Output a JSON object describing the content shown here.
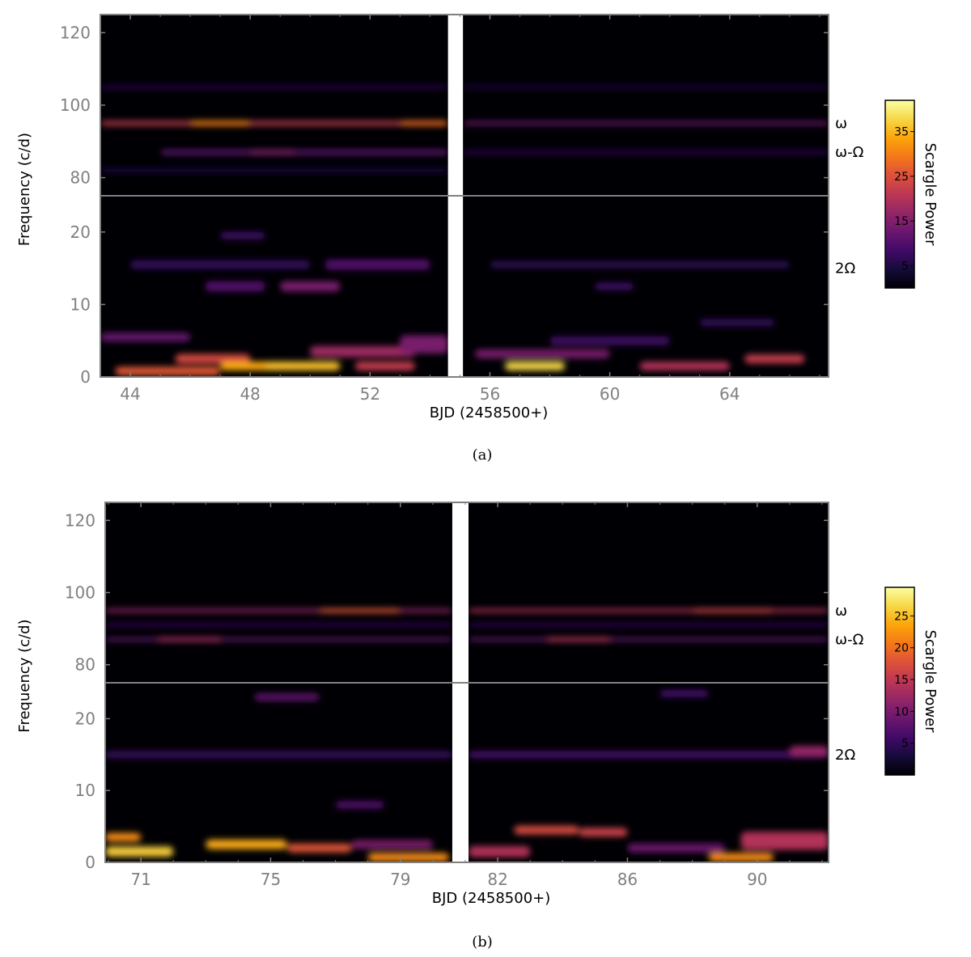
{
  "chart_data": [
    {
      "type": "heatmap",
      "caption": "(a)",
      "xlabel": "BJD (2458500+)",
      "ylabel": "Frequency (c/d)",
      "colorbar_label": "Scargle Power",
      "colorbar_ticks": [
        5,
        15,
        25,
        35
      ],
      "colorbar_range": [
        0,
        42
      ],
      "xlim": [
        43,
        67.3
      ],
      "gap": [
        54.6,
        55.1
      ],
      "x_ticks": [
        44,
        48,
        52,
        56,
        60,
        64
      ],
      "upper_ylim": [
        75,
        125
      ],
      "upper_y_ticks": [
        80,
        100,
        120
      ],
      "lower_ylim": [
        0,
        25
      ],
      "lower_y_ticks": [
        0,
        10,
        20
      ],
      "annotations": [
        {
          "text": "ω",
          "y": 95
        },
        {
          "text": "ω-Ω",
          "y": 87
        },
        {
          "text": "2Ω",
          "y": 15
        }
      ],
      "features": [
        {
          "x0": 43,
          "x1": 54.6,
          "y": 95,
          "h": 1.2,
          "v": 22
        },
        {
          "x0": 46,
          "x1": 48,
          "y": 95,
          "h": 1.4,
          "v": 30
        },
        {
          "x0": 53,
          "x1": 54.6,
          "y": 95,
          "h": 1.4,
          "v": 28
        },
        {
          "x0": 55.1,
          "x1": 67.3,
          "y": 95,
          "h": 1.0,
          "v": 13
        },
        {
          "x0": 45,
          "x1": 54.6,
          "y": 87,
          "h": 1.4,
          "v": 11
        },
        {
          "x0": 48,
          "x1": 49.5,
          "y": 87,
          "h": 1.4,
          "v": 15
        },
        {
          "x0": 55.1,
          "x1": 67.3,
          "y": 87,
          "h": 1.0,
          "v": 7
        },
        {
          "x0": 43,
          "x1": 54.6,
          "y": 105,
          "h": 1.0,
          "v": 6
        },
        {
          "x0": 55.1,
          "x1": 67.3,
          "y": 105,
          "h": 1.0,
          "v": 5
        },
        {
          "x0": 43,
          "x1": 54.6,
          "y": 82,
          "h": 1.2,
          "v": 5
        },
        {
          "x0": 43.5,
          "x1": 47,
          "y": 0.8,
          "h": 1.2,
          "v": 26
        },
        {
          "x0": 45.5,
          "x1": 48,
          "y": 2.5,
          "h": 1.3,
          "v": 24
        },
        {
          "x0": 47,
          "x1": 49.5,
          "y": 1.5,
          "h": 1.2,
          "v": 34
        },
        {
          "x0": 48.5,
          "x1": 51,
          "y": 1.5,
          "h": 1.2,
          "v": 36
        },
        {
          "x0": 50,
          "x1": 53.5,
          "y": 3.5,
          "h": 1.5,
          "v": 18
        },
        {
          "x0": 51.5,
          "x1": 53.5,
          "y": 1.5,
          "h": 1.2,
          "v": 22
        },
        {
          "x0": 53,
          "x1": 54.6,
          "y": 4.5,
          "h": 2.5,
          "v": 14
        },
        {
          "x0": 49,
          "x1": 51,
          "y": 12.5,
          "h": 1.4,
          "v": 14
        },
        {
          "x0": 46.5,
          "x1": 48.5,
          "y": 12.5,
          "h": 1.4,
          "v": 10
        },
        {
          "x0": 50.5,
          "x1": 54,
          "y": 15.5,
          "h": 1.4,
          "v": 10
        },
        {
          "x0": 44,
          "x1": 50,
          "y": 15.5,
          "h": 1.2,
          "v": 7
        },
        {
          "x0": 43,
          "x1": 46,
          "y": 5.5,
          "h": 1.2,
          "v": 12
        },
        {
          "x0": 47,
          "x1": 48.5,
          "y": 19.5,
          "h": 1.0,
          "v": 8
        },
        {
          "x0": 56.5,
          "x1": 58.5,
          "y": 1.5,
          "h": 1.2,
          "v": 38
        },
        {
          "x0": 55.5,
          "x1": 60,
          "y": 3.2,
          "h": 1.2,
          "v": 14
        },
        {
          "x0": 61,
          "x1": 64,
          "y": 1.5,
          "h": 1.2,
          "v": 20
        },
        {
          "x0": 64.5,
          "x1": 66.5,
          "y": 2.5,
          "h": 1.2,
          "v": 22
        },
        {
          "x0": 58,
          "x1": 62,
          "y": 5,
          "h": 1.2,
          "v": 8
        },
        {
          "x0": 56,
          "x1": 66,
          "y": 15.5,
          "h": 1.0,
          "v": 6
        },
        {
          "x0": 59.5,
          "x1": 60.8,
          "y": 12.5,
          "h": 1.0,
          "v": 8
        },
        {
          "x0": 63,
          "x1": 65.5,
          "y": 7.5,
          "h": 1.0,
          "v": 7
        }
      ]
    },
    {
      "type": "heatmap",
      "caption": "(b)",
      "xlabel": "BJD (2458500+)",
      "ylabel": "Frequency (c/d)",
      "colorbar_label": "Scargle Power",
      "colorbar_ticks": [
        5,
        10,
        15,
        20,
        25
      ],
      "colorbar_range": [
        0,
        29.5
      ],
      "xlim": [
        69.9,
        92.2
      ],
      "gap": [
        80.6,
        81.1
      ],
      "x_ticks": [
        71,
        75,
        79,
        82,
        86,
        90
      ],
      "upper_ylim": [
        75,
        125
      ],
      "upper_y_ticks": [
        80,
        100,
        120
      ],
      "lower_ylim": [
        0,
        25
      ],
      "lower_y_ticks": [
        0,
        10,
        20
      ],
      "annotations": [
        {
          "text": "ω",
          "y": 95
        },
        {
          "text": "ω-Ω",
          "y": 87
        },
        {
          "text": "2Ω",
          "y": 15
        }
      ],
      "features": [
        {
          "x0": 69.9,
          "x1": 80.6,
          "y": 95,
          "h": 1.0,
          "v": 12
        },
        {
          "x0": 76.5,
          "x1": 79,
          "y": 95,
          "h": 1.2,
          "v": 18
        },
        {
          "x0": 81.1,
          "x1": 92.2,
          "y": 95,
          "h": 1.0,
          "v": 14
        },
        {
          "x0": 88,
          "x1": 90.5,
          "y": 95,
          "h": 1.2,
          "v": 16
        },
        {
          "x0": 69.9,
          "x1": 80.6,
          "y": 87,
          "h": 1.0,
          "v": 8
        },
        {
          "x0": 71.5,
          "x1": 73.5,
          "y": 87,
          "h": 1.2,
          "v": 13
        },
        {
          "x0": 81.1,
          "x1": 92.2,
          "y": 87,
          "h": 1.0,
          "v": 8
        },
        {
          "x0": 83.5,
          "x1": 85.5,
          "y": 87,
          "h": 1.2,
          "v": 14
        },
        {
          "x0": 69.9,
          "x1": 80.6,
          "y": 91,
          "h": 1.0,
          "v": 5
        },
        {
          "x0": 81.1,
          "x1": 92.2,
          "y": 91,
          "h": 1.0,
          "v": 5
        },
        {
          "x0": 69.9,
          "x1": 72,
          "y": 1.5,
          "h": 1.4,
          "v": 26
        },
        {
          "x0": 69.9,
          "x1": 71,
          "y": 3.5,
          "h": 1.2,
          "v": 22
        },
        {
          "x0": 73,
          "x1": 75.5,
          "y": 2.5,
          "h": 1.3,
          "v": 24
        },
        {
          "x0": 75.5,
          "x1": 77.5,
          "y": 2,
          "h": 1.2,
          "v": 18
        },
        {
          "x0": 78,
          "x1": 80.5,
          "y": 0.7,
          "h": 1.2,
          "v": 22
        },
        {
          "x0": 77.5,
          "x1": 80,
          "y": 2.5,
          "h": 1.2,
          "v": 10
        },
        {
          "x0": 81.1,
          "x1": 83,
          "y": 1.5,
          "h": 1.5,
          "v": 14
        },
        {
          "x0": 82.5,
          "x1": 84.5,
          "y": 4.5,
          "h": 1.2,
          "v": 17
        },
        {
          "x0": 84.5,
          "x1": 86,
          "y": 4.2,
          "h": 1.2,
          "v": 16
        },
        {
          "x0": 88.5,
          "x1": 90.5,
          "y": 0.7,
          "h": 1.2,
          "v": 22
        },
        {
          "x0": 89.5,
          "x1": 92.2,
          "y": 3,
          "h": 2.5,
          "v": 14
        },
        {
          "x0": 86,
          "x1": 89,
          "y": 2,
          "h": 1.2,
          "v": 9
        },
        {
          "x0": 74.5,
          "x1": 76.5,
          "y": 23,
          "h": 1.0,
          "v": 8
        },
        {
          "x0": 69.9,
          "x1": 80.6,
          "y": 15,
          "h": 1.0,
          "v": 5
        },
        {
          "x0": 81.1,
          "x1": 92.2,
          "y": 15,
          "h": 1.0,
          "v": 6
        },
        {
          "x0": 91,
          "x1": 92.2,
          "y": 15.5,
          "h": 1.4,
          "v": 12
        },
        {
          "x0": 77,
          "x1": 78.5,
          "y": 8,
          "h": 1.0,
          "v": 7
        },
        {
          "x0": 87,
          "x1": 88.5,
          "y": 23.5,
          "h": 1.0,
          "v": 6
        }
      ]
    }
  ],
  "colors": {
    "background": "#000004",
    "frame": "#808080",
    "gap": "#ffffff"
  }
}
